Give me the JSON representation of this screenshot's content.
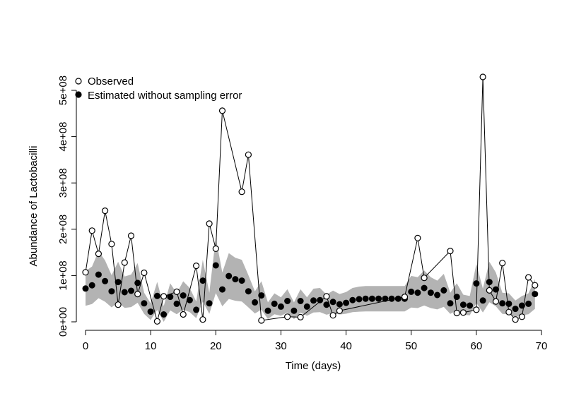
{
  "chart_data": {
    "type": "scatter",
    "xlabel": "Time (days)",
    "ylabel": "Abundance of Lactobacilli",
    "xlim": [
      0,
      70
    ],
    "ylim": [
      0,
      500000000
    ],
    "xticks": [
      0,
      10,
      20,
      30,
      40,
      50,
      60,
      70
    ],
    "yticks": [
      0,
      100000000,
      200000000,
      300000000,
      400000000,
      500000000
    ],
    "ytick_labels": [
      "0e+00",
      "1e+08",
      "2e+08",
      "3e+08",
      "4e+08",
      "5e+08"
    ],
    "legend_position": "top-left",
    "grid": false,
    "band_color": "#b3b3b3",
    "series": [
      {
        "name": "Observed",
        "marker": "open-circle",
        "connected": true,
        "x": [
          0,
          1,
          2,
          3,
          4,
          5,
          6,
          7,
          8,
          9,
          11,
          12,
          14,
          15,
          17,
          18,
          19,
          20,
          21,
          24,
          25,
          27,
          31,
          33,
          37,
          38,
          39,
          49,
          51,
          52,
          56,
          57,
          58,
          60,
          61,
          62,
          63,
          64,
          65,
          66,
          67,
          68,
          69
        ],
        "y": [
          107000000,
          197000000,
          147000000,
          240000000,
          168000000,
          37000000,
          128000000,
          186000000,
          60000000,
          106000000,
          1000000,
          55000000,
          65000000,
          16000000,
          121000000,
          5000000,
          212000000,
          158000000,
          456000000,
          281000000,
          361000000,
          3000000,
          11000000,
          10000000,
          55000000,
          14000000,
          24000000,
          54000000,
          181000000,
          95000000,
          153000000,
          19000000,
          20000000,
          26000000,
          529000000,
          68000000,
          44000000,
          127000000,
          21000000,
          5000000,
          11000000,
          96000000,
          79000000
        ]
      },
      {
        "name": "Estimated without sampling error",
        "marker": "filled-circle",
        "connected": false,
        "x": [
          0,
          1,
          2,
          3,
          4,
          5,
          6,
          7,
          8,
          9,
          10,
          11,
          12,
          13,
          14,
          15,
          16,
          17,
          18,
          19,
          20,
          21,
          22,
          23,
          24,
          25,
          26,
          27,
          28,
          29,
          30,
          31,
          32,
          33,
          34,
          35,
          36,
          37,
          38,
          39,
          40,
          41,
          42,
          43,
          44,
          45,
          46,
          47,
          48,
          49,
          50,
          51,
          52,
          53,
          54,
          55,
          56,
          57,
          58,
          59,
          60,
          61,
          62,
          63,
          64,
          65,
          66,
          67,
          68,
          69
        ],
        "y": [
          72000000,
          79000000,
          102000000,
          88000000,
          66000000,
          86000000,
          64000000,
          67000000,
          84000000,
          40000000,
          22000000,
          56000000,
          16000000,
          54000000,
          39000000,
          57000000,
          47000000,
          26000000,
          89000000,
          40000000,
          122000000,
          70000000,
          99000000,
          92000000,
          89000000,
          66000000,
          42000000,
          57000000,
          24000000,
          39000000,
          33000000,
          45000000,
          24000000,
          45000000,
          33000000,
          46000000,
          47000000,
          37000000,
          43000000,
          38000000,
          41000000,
          47000000,
          49000000,
          50000000,
          50000000,
          50000000,
          50000000,
          50000000,
          50000000,
          50000000,
          65000000,
          63000000,
          73000000,
          63000000,
          58000000,
          68000000,
          40000000,
          54000000,
          37000000,
          35000000,
          83000000,
          46000000,
          86000000,
          70000000,
          40000000,
          39000000,
          28000000,
          35000000,
          39000000,
          60000000
        ]
      }
    ]
  }
}
